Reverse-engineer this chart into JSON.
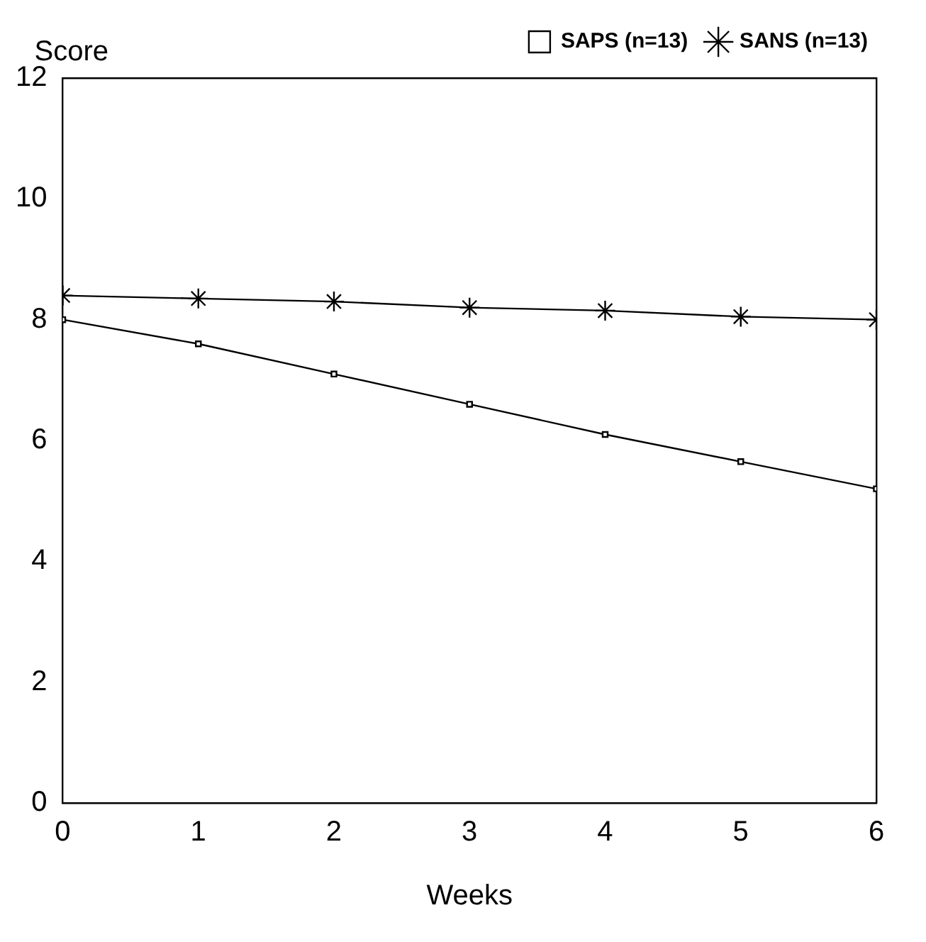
{
  "chart_data": {
    "type": "line",
    "xlabel": "Weeks",
    "ylabel": "Score",
    "x": [
      0,
      1,
      2,
      3,
      4,
      5,
      6
    ],
    "series": [
      {
        "name": "SAPS (n=13)",
        "color": "#000000",
        "marker": "square",
        "values": [
          8.0,
          7.6,
          7.1,
          6.6,
          6.1,
          5.65,
          5.2
        ]
      },
      {
        "name": "SANS (n=13)",
        "color": "#000000",
        "marker": "cross",
        "values": [
          8.4,
          8.35,
          8.3,
          8.2,
          8.15,
          8.05,
          8.0
        ]
      }
    ],
    "xlim": [
      0,
      6
    ],
    "xticks": [
      0,
      1,
      2,
      3,
      4,
      5,
      6
    ],
    "ylim": [
      0,
      12
    ],
    "yticks": [
      0,
      2,
      4,
      6,
      8,
      10,
      12
    ],
    "grid": false,
    "legend": "top right",
    "line_style": "solid"
  }
}
